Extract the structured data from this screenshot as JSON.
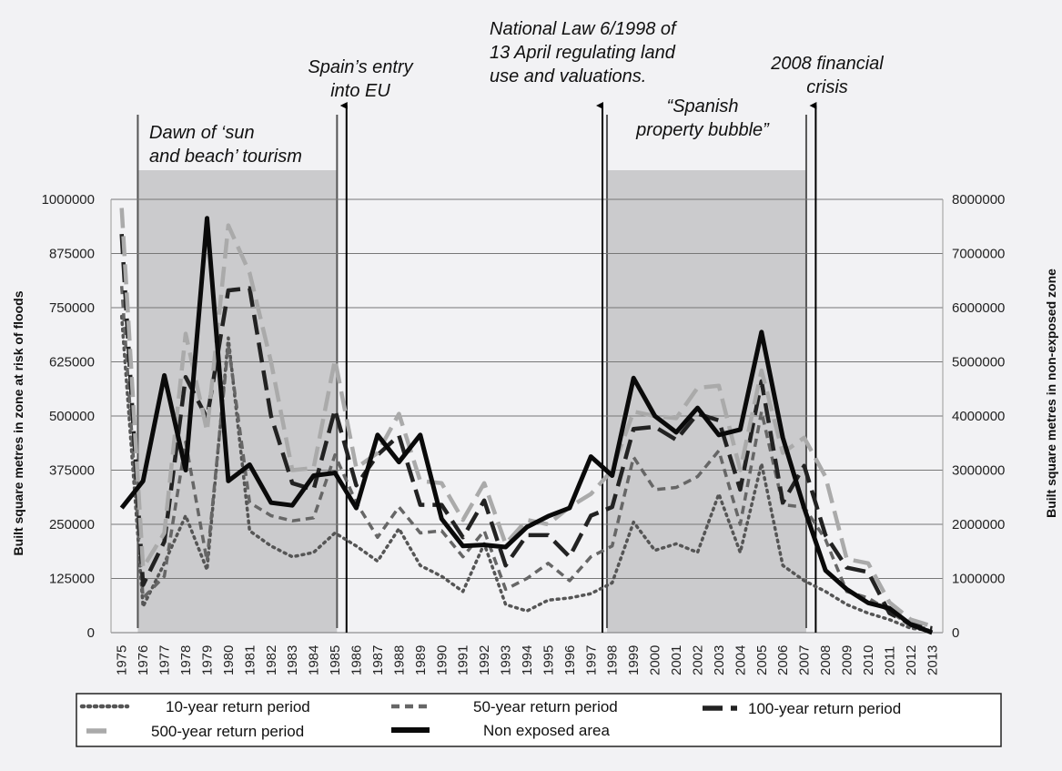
{
  "chart_data": {
    "type": "line",
    "categories": [
      "1975",
      "1976",
      "1977",
      "1978",
      "1979",
      "1980",
      "1981",
      "1982",
      "1983",
      "1984",
      "1985",
      "1986",
      "1987",
      "1988",
      "1989",
      "1990",
      "1991",
      "1992",
      "1993",
      "1994",
      "1995",
      "1996",
      "1997",
      "1998",
      "1999",
      "2000",
      "2001",
      "2002",
      "2003",
      "2004",
      "2005",
      "2006",
      "2007",
      "2008",
      "2009",
      "2010",
      "2011",
      "2012",
      "2013"
    ],
    "ylabel": "Built square metres in zone at risk of floods",
    "y2label": "Built square metres in non-exposed zone",
    "ylim": [
      0,
      1000000
    ],
    "y2lim": [
      0,
      8000000
    ],
    "yticks": [
      "0",
      "125000",
      "250000",
      "375000",
      "500000",
      "625000",
      "750000",
      "875000",
      "1000000"
    ],
    "y2ticks": [
      "0",
      "1000000",
      "2000000",
      "3000000",
      "4000000",
      "5000000",
      "6000000",
      "7000000",
      "8000000"
    ],
    "grid": true,
    "legend_position": "bottom",
    "series": [
      {
        "name": "10-year return period",
        "axis": "left",
        "color": "#555555",
        "dash": "dot",
        "values": [
          730000,
          60000,
          160000,
          270000,
          145000,
          680000,
          235000,
          200000,
          175000,
          185000,
          230000,
          200000,
          165000,
          240000,
          155000,
          130000,
          95000,
          205000,
          65000,
          50000,
          75000,
          80000,
          90000,
          115000,
          255000,
          190000,
          205000,
          185000,
          320000,
          185000,
          390000,
          155000,
          120000,
          95000,
          65000,
          45000,
          30000,
          10000,
          5000
        ]
      },
      {
        "name": "50-year return period",
        "axis": "left",
        "color": "#666666",
        "dash": "dash",
        "values": [
          800000,
          80000,
          130000,
          440000,
          165000,
          665000,
          300000,
          270000,
          258000,
          265000,
          410000,
          300000,
          220000,
          290000,
          230000,
          235000,
          175000,
          235000,
          100000,
          125000,
          160000,
          120000,
          175000,
          200000,
          405000,
          330000,
          335000,
          360000,
          420000,
          250000,
          510000,
          295000,
          290000,
          215000,
          95000,
          80000,
          50000,
          15000,
          8000
        ]
      },
      {
        "name": "100-year return period",
        "axis": "left",
        "color": "#222222",
        "dash": "longdash",
        "values": [
          920000,
          110000,
          210000,
          590000,
          495000,
          790000,
          795000,
          500000,
          345000,
          330000,
          515000,
          340000,
          410000,
          455000,
          295000,
          295000,
          220000,
          305000,
          155000,
          225000,
          225000,
          175000,
          270000,
          290000,
          470000,
          475000,
          445000,
          505000,
          490000,
          330000,
          580000,
          300000,
          385000,
          225000,
          150000,
          140000,
          45000,
          20000,
          10000
        ]
      },
      {
        "name": "500-year return period",
        "axis": "left",
        "color": "#aaaaaa",
        "dash": "longdash",
        "values": [
          980000,
          150000,
          230000,
          690000,
          465000,
          940000,
          830000,
          625000,
          375000,
          380000,
          630000,
          380000,
          415000,
          505000,
          350000,
          345000,
          260000,
          345000,
          205000,
          260000,
          250000,
          290000,
          320000,
          375000,
          510000,
          500000,
          495000,
          565000,
          570000,
          375000,
          605000,
          415000,
          450000,
          360000,
          170000,
          160000,
          70000,
          30000,
          15000
        ]
      },
      {
        "name": "Non exposed area",
        "axis": "right",
        "color": "#0a0a0a",
        "dash": "solid",
        "values": [
          2300000,
          2800000,
          4750000,
          3000000,
          7650000,
          2800000,
          3100000,
          2400000,
          2350000,
          2900000,
          2950000,
          2300000,
          3650000,
          3150000,
          3650000,
          2100000,
          1600000,
          1620000,
          1580000,
          1950000,
          2150000,
          2300000,
          3250000,
          2900000,
          4700000,
          4000000,
          3700000,
          4150000,
          3650000,
          3750000,
          5550000,
          3600000,
          2300000,
          1150000,
          800000,
          550000,
          450000,
          150000,
          0
        ]
      }
    ],
    "annotations": [
      {
        "label": "Dawn of ‘sun and beach’ tourism",
        "lines": [
          "Dawn of ‘sun",
          "and beach’ tourism"
        ]
      },
      {
        "label": "Spain’s entry into EU",
        "lines": [
          "Spain’s entry",
          "into EU"
        ]
      },
      {
        "label": "National Law 6/1998 of 13 April regulating land use and valuations.",
        "lines": [
          "National  Law  6/1998  of",
          "13  April  regulating  land",
          "use and valuations."
        ]
      },
      {
        "label": "“Spanish property bubble”",
        "lines": [
          "“Spanish",
          "property bubble”"
        ]
      },
      {
        "label": "2008 financial crisis",
        "lines": [
          "2008 financial",
          "crisis"
        ]
      }
    ]
  }
}
